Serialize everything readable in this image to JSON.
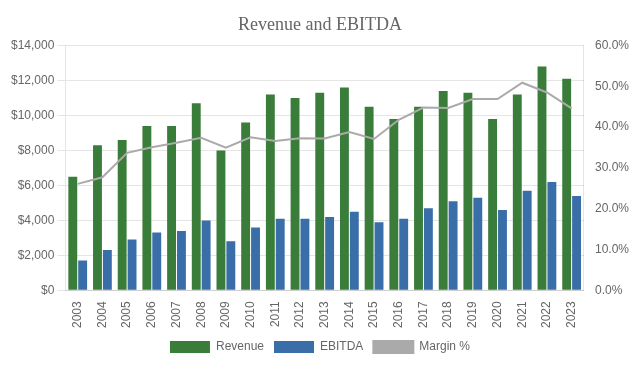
{
  "chart_data": {
    "type": "bar",
    "title": "Revenue and EBITDA",
    "categories": [
      "2003",
      "2004",
      "2005",
      "2006",
      "2007",
      "2008",
      "2009",
      "2010",
      "2011",
      "2012",
      "2013",
      "2014",
      "2015",
      "2016",
      "2017",
      "2018",
      "2019",
      "2020",
      "2021",
      "2022",
      "2023"
    ],
    "series": [
      {
        "name": "Revenue",
        "type": "bar",
        "color": "#3a7d3a",
        "values": [
          6500,
          8300,
          8600,
          9400,
          9400,
          10700,
          8000,
          9600,
          11200,
          11000,
          11300,
          11600,
          10500,
          9800,
          10500,
          11400,
          11300,
          9800,
          11200,
          12800,
          12100
        ]
      },
      {
        "name": "EBITDA",
        "type": "bar",
        "color": "#3a6ea8",
        "values": [
          1700,
          2300,
          2900,
          3300,
          3400,
          4000,
          2800,
          3600,
          4100,
          4100,
          4200,
          4500,
          3900,
          4100,
          4700,
          5100,
          5300,
          4600,
          5700,
          6200,
          5400
        ]
      },
      {
        "name": "Margin %",
        "type": "line",
        "color": "#aaaaaa",
        "axis": "y2",
        "values": [
          0.261,
          0.277,
          0.337,
          0.351,
          0.362,
          0.374,
          0.35,
          0.375,
          0.366,
          0.373,
          0.372,
          0.388,
          0.371,
          0.418,
          0.448,
          0.447,
          0.469,
          0.469,
          0.509,
          0.485,
          0.446
        ]
      }
    ],
    "ylim": [
      0,
      14000
    ],
    "yticks": [
      {
        "value": 0,
        "label": "$0"
      },
      {
        "value": 2000,
        "label": "$2,000"
      },
      {
        "value": 4000,
        "label": "$4,000"
      },
      {
        "value": 6000,
        "label": "$6,000"
      },
      {
        "value": 8000,
        "label": "$8,000"
      },
      {
        "value": 10000,
        "label": "$10,000"
      },
      {
        "value": 12000,
        "label": "$12,000"
      },
      {
        "value": 14000,
        "label": "$14,000"
      }
    ],
    "y2lim": [
      0,
      0.6
    ],
    "y2ticks": [
      {
        "value": 0.0,
        "label": "0.0%"
      },
      {
        "value": 0.1,
        "label": "10.0%"
      },
      {
        "value": 0.2,
        "label": "20.0%"
      },
      {
        "value": 0.3,
        "label": "30.0%"
      },
      {
        "value": 0.4,
        "label": "40.0%"
      },
      {
        "value": 0.5,
        "label": "50.0%"
      },
      {
        "value": 0.6,
        "label": "60.0%"
      }
    ],
    "grid": true,
    "legend": "bottom"
  }
}
